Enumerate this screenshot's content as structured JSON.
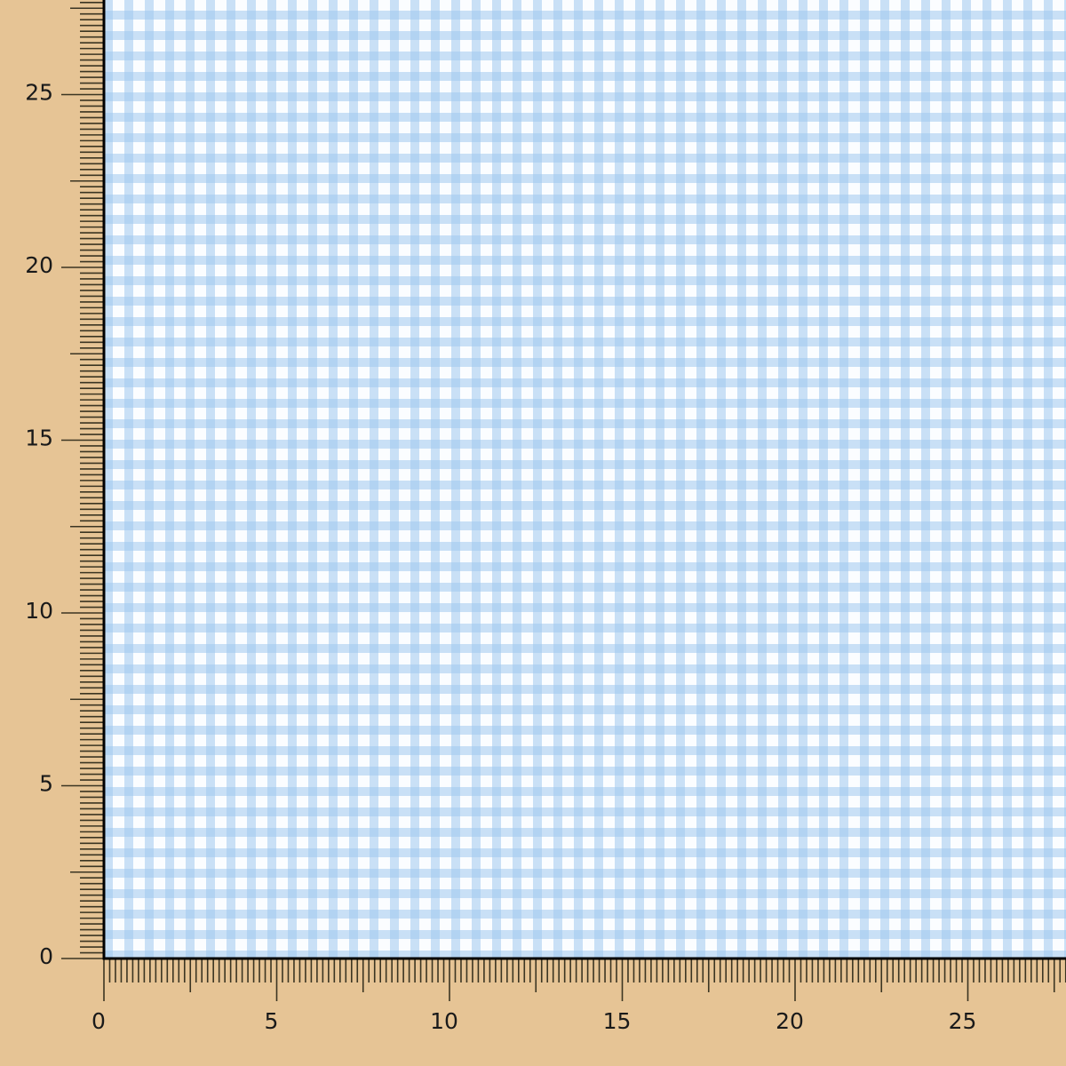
{
  "rulers": {
    "x_labels": [
      "0",
      "5",
      "10",
      "15",
      "20",
      "25"
    ],
    "y_labels": [
      "0",
      "5",
      "10",
      "15",
      "20",
      "25"
    ],
    "major_every": 5,
    "minor_per_unit": 6
  },
  "colors": {
    "background": "#e6c495",
    "fabric_blue": "#c5dcf3",
    "fabric_white": "#fbfdff",
    "tick": "#3b3522",
    "axis": "#000000"
  }
}
